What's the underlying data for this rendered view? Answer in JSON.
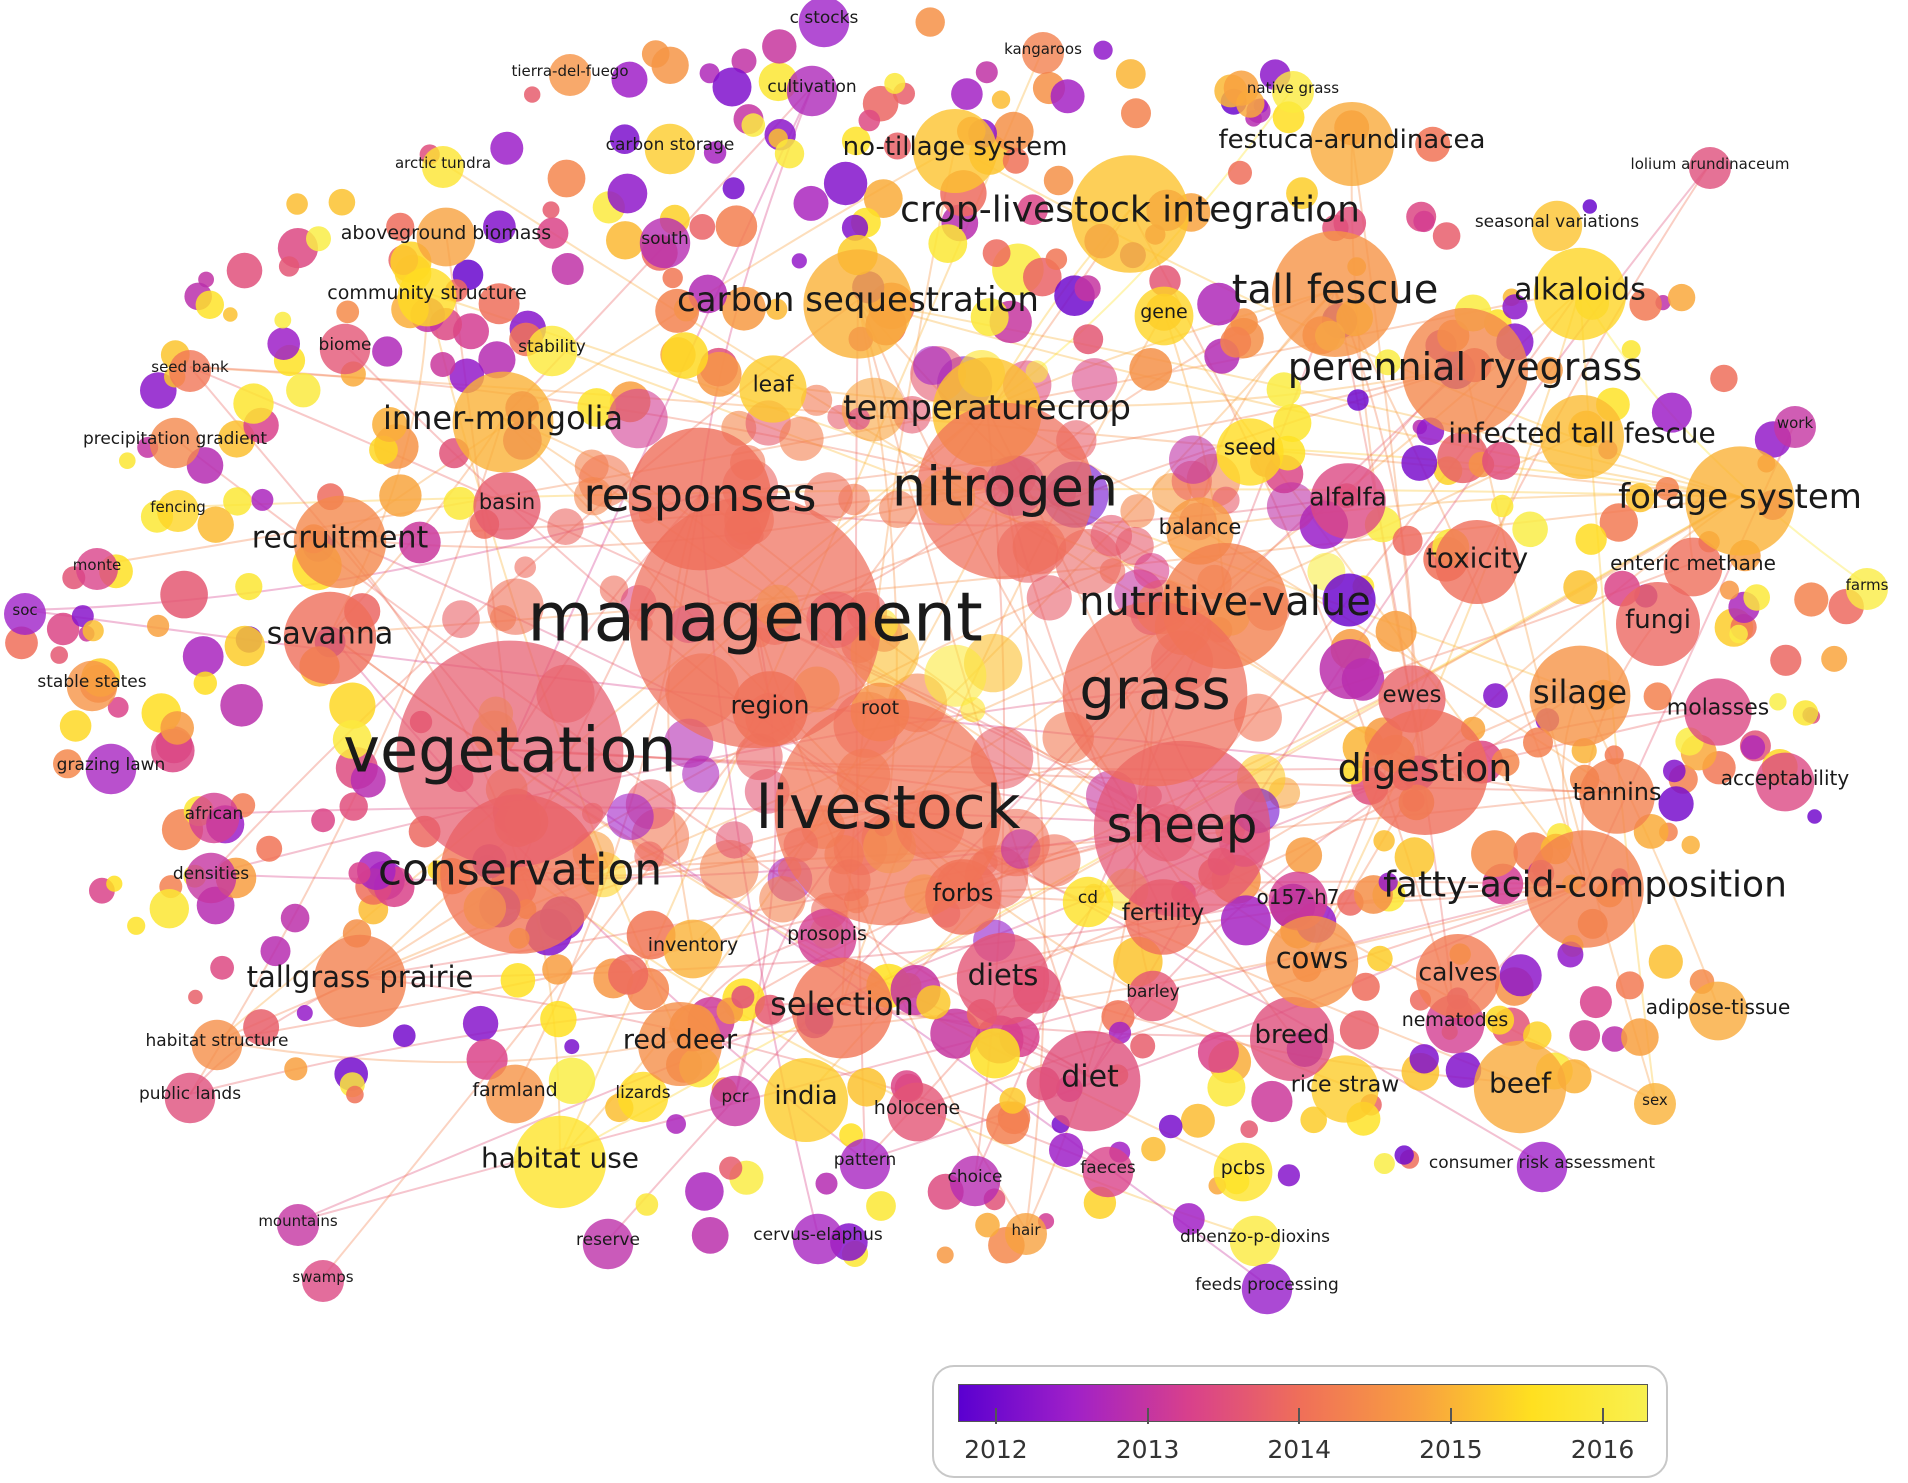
{
  "legend": {
    "gradient": [
      "#5a00d0",
      "#a020c8",
      "#d8408c",
      "#f07058",
      "#f8a040",
      "#ffe020",
      "#f8f050"
    ],
    "ticks": [
      {
        "value": 2012,
        "label": "2012"
      },
      {
        "value": 2013,
        "label": "2013"
      },
      {
        "value": 2014,
        "label": "2014"
      },
      {
        "value": 2015,
        "label": "2015"
      },
      {
        "value": 2016,
        "label": "2016"
      }
    ],
    "range": [
      2011.75,
      2016.3
    ]
  },
  "keywords": [
    {
      "text": "management",
      "year": 2014.0,
      "weight": 30
    },
    {
      "text": "vegetation",
      "year": 2013.7,
      "weight": 27
    },
    {
      "text": "livestock",
      "year": 2014.1,
      "weight": 27
    },
    {
      "text": "nitrogen",
      "year": 2014.0,
      "weight": 21
    },
    {
      "text": "grass",
      "year": 2014.0,
      "weight": 22
    },
    {
      "text": "sheep",
      "year": 2013.6,
      "weight": 21
    },
    {
      "text": "conservation",
      "year": 2014.1,
      "weight": 19
    },
    {
      "text": "responses",
      "year": 2014.0,
      "weight": 17
    },
    {
      "text": "nutritive-value",
      "year": 2014.3,
      "weight": 15
    },
    {
      "text": "digestion",
      "year": 2014.0,
      "weight": 15
    },
    {
      "text": "tall fescue",
      "year": 2014.6,
      "weight": 15
    },
    {
      "text": "perennial ryegrass",
      "year": 2014.4,
      "weight": 15
    },
    {
      "text": "crop-livestock integration",
      "year": 2015.2,
      "weight": 14
    },
    {
      "text": "carbon sequestration",
      "year": 2015.0,
      "weight": 13
    },
    {
      "text": "fatty-acid-composition",
      "year": 2014.3,
      "weight": 14
    },
    {
      "text": "forage system",
      "year": 2015.0,
      "weight": 13
    },
    {
      "text": "temperaturecrop",
      "year": 2015.2,
      "weight": 13
    },
    {
      "text": "inner-mongolia",
      "year": 2015.0,
      "weight": 12
    },
    {
      "text": "selection",
      "year": 2014.1,
      "weight": 12
    },
    {
      "text": "savanna",
      "year": 2014.0,
      "weight": 11
    },
    {
      "text": "recruitment",
      "year": 2014.4,
      "weight": 11
    },
    {
      "text": "silage",
      "year": 2014.6,
      "weight": 12
    },
    {
      "text": "alkaloids",
      "year": 2015.4,
      "weight": 11
    },
    {
      "text": "tallgrass prairie",
      "year": 2014.3,
      "weight": 11
    },
    {
      "text": "diet",
      "year": 2013.5,
      "weight": 12
    },
    {
      "text": "diets",
      "year": 2013.6,
      "weight": 11
    },
    {
      "text": "habitat use",
      "year": 2015.7,
      "weight": 11
    },
    {
      "text": "cows",
      "year": 2014.6,
      "weight": 11
    },
    {
      "text": "beef",
      "year": 2014.9,
      "weight": 11
    },
    {
      "text": "red deer",
      "year": 2014.5,
      "weight": 10
    },
    {
      "text": "infected tall fescue",
      "year": 2015.1,
      "weight": 10
    },
    {
      "text": "toxicity",
      "year": 2014.0,
      "weight": 10
    },
    {
      "text": "alfalfa",
      "year": 2013.4,
      "weight": 9
    },
    {
      "text": "fungi",
      "year": 2013.9,
      "weight": 10
    },
    {
      "text": "breed",
      "year": 2013.5,
      "weight": 10
    },
    {
      "text": "calves",
      "year": 2014.2,
      "weight": 10
    },
    {
      "text": "india",
      "year": 2015.3,
      "weight": 10
    },
    {
      "text": "festuca-arundinacea",
      "year": 2014.9,
      "weight": 10
    },
    {
      "text": "no-tillage system",
      "year": 2015.2,
      "weight": 10
    },
    {
      "text": "region",
      "year": 2014.2,
      "weight": 9
    },
    {
      "text": "fertility",
      "year": 2014.0,
      "weight": 9
    },
    {
      "text": "forbs",
      "year": 2014.0,
      "weight": 9
    },
    {
      "text": "tannins",
      "year": 2014.3,
      "weight": 9
    },
    {
      "text": "ewes",
      "year": 2013.8,
      "weight": 8
    },
    {
      "text": "molasses",
      "year": 2013.4,
      "weight": 8
    },
    {
      "text": "seed",
      "year": 2015.5,
      "weight": 8
    },
    {
      "text": "balance",
      "year": 2014.7,
      "weight": 8
    },
    {
      "text": "basin",
      "year": 2013.7,
      "weight": 8
    },
    {
      "text": "leaf",
      "year": 2015.3,
      "weight": 8
    },
    {
      "text": "gene",
      "year": 2015.4,
      "weight": 7
    },
    {
      "text": "root",
      "year": 2014.6,
      "weight": 7
    },
    {
      "text": "o157-h7",
      "year": 2013.2,
      "weight": 7
    },
    {
      "text": "enteric methane",
      "year": 2014.0,
      "weight": 7
    },
    {
      "text": "acceptability",
      "year": 2013.4,
      "weight": 7
    },
    {
      "text": "adipose-tissue",
      "year": 2014.9,
      "weight": 7
    },
    {
      "text": "nematodes",
      "year": 2013.2,
      "weight": 7
    },
    {
      "text": "rice straw",
      "year": 2015.3,
      "weight": 8
    },
    {
      "text": "barley",
      "year": 2013.6,
      "weight": 6
    },
    {
      "text": "cd",
      "year": 2015.6,
      "weight": 6
    },
    {
      "text": "prosopis",
      "year": 2013.2,
      "weight": 7
    },
    {
      "text": "inventory",
      "year": 2015.0,
      "weight": 7
    },
    {
      "text": "holocene",
      "year": 2013.6,
      "weight": 7
    },
    {
      "text": "pcr",
      "year": 2013.0,
      "weight": 6
    },
    {
      "text": "lizards",
      "year": 2015.5,
      "weight": 6
    },
    {
      "text": "farmland",
      "year": 2014.6,
      "weight": 7
    },
    {
      "text": "pattern",
      "year": 2012.6,
      "weight": 6
    },
    {
      "text": "choice",
      "year": 2012.8,
      "weight": 6
    },
    {
      "text": "faeces",
      "year": 2013.3,
      "weight": 6
    },
    {
      "text": "pcbs",
      "year": 2015.7,
      "weight": 7
    },
    {
      "text": "consumer risk assessment",
      "year": 2012.5,
      "weight": 6
    },
    {
      "text": "sex",
      "year": 2015.0,
      "weight": 5
    },
    {
      "text": "reserve",
      "year": 2012.9,
      "weight": 6
    },
    {
      "text": "cervus-elaphus",
      "year": 2012.6,
      "weight": 6
    },
    {
      "text": "hair",
      "year": 2014.8,
      "weight": 5
    },
    {
      "text": "dibenzo-p-dioxins",
      "year": 2016.0,
      "weight": 6
    },
    {
      "text": "feeds processing",
      "year": 2012.4,
      "weight": 6
    },
    {
      "text": "mountains",
      "year": 2013.0,
      "weight": 5
    },
    {
      "text": "swamps",
      "year": 2013.4,
      "weight": 5
    },
    {
      "text": "public lands",
      "year": 2013.5,
      "weight": 6
    },
    {
      "text": "habitat structure",
      "year": 2014.5,
      "weight": 6
    },
    {
      "text": "densities",
      "year": 2013.0,
      "weight": 6
    },
    {
      "text": "african",
      "year": 2013.2,
      "weight": 6
    },
    {
      "text": "grazing lawn",
      "year": 2012.6,
      "weight": 6
    },
    {
      "text": "stable states",
      "year": 2014.6,
      "weight": 6
    },
    {
      "text": "soc",
      "year": 2012.5,
      "weight": 5
    },
    {
      "text": "monte",
      "year": 2013.3,
      "weight": 5
    },
    {
      "text": "fencing",
      "year": 2015.4,
      "weight": 5
    },
    {
      "text": "precipitation gradient",
      "year": 2014.4,
      "weight": 6
    },
    {
      "text": "seed bank",
      "year": 2014.1,
      "weight": 5
    },
    {
      "text": "biome",
      "year": 2013.6,
      "weight": 6
    },
    {
      "text": "stability",
      "year": 2015.9,
      "weight": 6
    },
    {
      "text": "community structure",
      "year": 2015.5,
      "weight": 7
    },
    {
      "text": "aboveground biomass",
      "year": 2014.8,
      "weight": 7
    },
    {
      "text": "south",
      "year": 2012.8,
      "weight": 6
    },
    {
      "text": "arctic tundra",
      "year": 2015.8,
      "weight": 5
    },
    {
      "text": "carbon storage",
      "year": 2015.3,
      "weight": 6
    },
    {
      "text": "tierra-del-fuego",
      "year": 2014.6,
      "weight": 5
    },
    {
      "text": "cultivation",
      "year": 2012.7,
      "weight": 6
    },
    {
      "text": "c stocks",
      "year": 2012.5,
      "weight": 6
    },
    {
      "text": "kangaroos",
      "year": 2014.3,
      "weight": 5
    },
    {
      "text": "native grass",
      "year": 2016.0,
      "weight": 5
    },
    {
      "text": "lolium arundinaceum",
      "year": 2013.5,
      "weight": 5
    },
    {
      "text": "seasonal variations",
      "year": 2015.2,
      "weight": 6
    },
    {
      "text": "work",
      "year": 2013.0,
      "weight": 5
    },
    {
      "text": "farms",
      "year": 2016.1,
      "weight": 5
    }
  ]
}
